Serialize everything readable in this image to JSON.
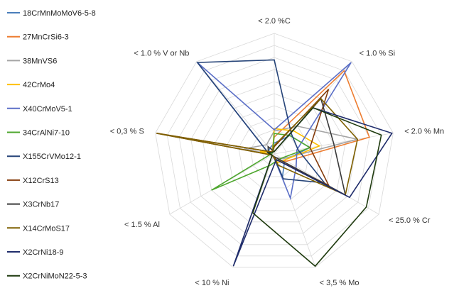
{
  "chart_data": {
    "type": "radar",
    "axes": [
      "< 2.0 %C",
      "< 1.0 % Si",
      "< 2.0 % Mn",
      "< 25.0 % Cr",
      "< 3,5 % Mo",
      "< 10 % Ni",
      "< 1.5 % Al",
      "< 0,3 % S",
      "< 1.0 % V or Nb"
    ],
    "rlim": [
      0,
      1
    ],
    "grid": true,
    "grid_levels": 10,
    "legend_position": "left",
    "series": [
      {
        "name": "18CrMnMoMoV6-5-8",
        "color": "#4a7ebb",
        "values": [
          0.09,
          0.2,
          0.3,
          0.1,
          0.2,
          0.02,
          0.02,
          0.05,
          0.06
        ]
      },
      {
        "name": "27MnCrSi6-3",
        "color": "#ed7d31",
        "values": [
          0.14,
          0.9,
          0.8,
          0.12,
          0.06,
          0.03,
          0.02,
          0.04,
          0.03
        ]
      },
      {
        "name": "38MnVS6",
        "color": "#a5a5a5",
        "values": [
          0.19,
          0.3,
          0.7,
          0.08,
          0.03,
          0.03,
          0.02,
          0.25,
          0.1
        ]
      },
      {
        "name": "42CrMo4",
        "color": "#ffc000",
        "values": [
          0.21,
          0.25,
          0.38,
          0.1,
          0.08,
          0.02,
          0.02,
          0.12,
          0.02
        ]
      },
      {
        "name": "X40CrMoV5-1",
        "color": "#5b6fc7",
        "values": [
          0.2,
          0.99,
          0.19,
          0.21,
          0.39,
          0.02,
          0.02,
          0.05,
          0.99
        ]
      },
      {
        "name": "34CrAlNi7-10",
        "color": "#4ea72e",
        "values": [
          0.17,
          0.2,
          0.3,
          0.07,
          0.06,
          0.1,
          0.6,
          0.02,
          0.02
        ]
      },
      {
        "name": "X155CrVMo12-1",
        "color": "#264478",
        "values": [
          0.78,
          0.22,
          0.2,
          0.48,
          0.22,
          0.02,
          0.02,
          0.05,
          0.99
        ]
      },
      {
        "name": "X12CrS13",
        "color": "#843c0c",
        "values": [
          0.06,
          0.7,
          0.3,
          0.52,
          0.05,
          0.02,
          0.02,
          0.99,
          0.02
        ]
      },
      {
        "name": "X3CrNb17",
        "color": "#3a3a3a",
        "values": [
          0.02,
          0.6,
          0.5,
          0.68,
          0.03,
          0.02,
          0.02,
          0.05,
          0.08
        ]
      },
      {
        "name": "X14CrMoS17",
        "color": "#7f6000",
        "values": [
          0.07,
          0.6,
          0.7,
          0.68,
          0.1,
          0.02,
          0.02,
          0.99,
          0.02
        ]
      },
      {
        "name": "X2CrNi18-9",
        "color": "#1f2c6b",
        "values": [
          0.02,
          0.5,
          0.99,
          0.72,
          0.05,
          0.99,
          0.02,
          0.05,
          0.02
        ]
      },
      {
        "name": "X2CrNiMoN22-5-3",
        "color": "#1e3a0e",
        "values": [
          0.02,
          0.5,
          0.9,
          0.88,
          0.99,
          0.52,
          0.02,
          0.05,
          0.02
        ]
      }
    ]
  }
}
